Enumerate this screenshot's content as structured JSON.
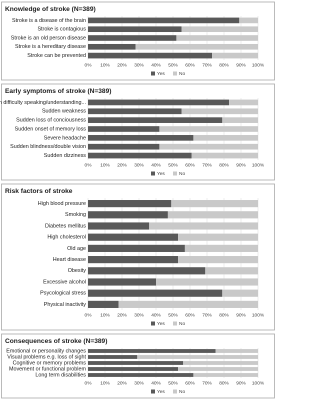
{
  "chart_data": [
    {
      "type": "bar",
      "orientation": "horizontal",
      "stacked": true,
      "title": "Knowledge of stroke (N=389)",
      "categories": [
        "Stroke is a disease of the brain",
        "Stroke is contagious",
        "Stroke is an old person disease",
        "Stroke is a hereditary disease",
        "Stroke can be prevented"
      ],
      "series": [
        {
          "name": "Yes",
          "color": "#595959",
          "values": [
            89,
            55,
            52,
            28,
            73
          ]
        },
        {
          "name": "No",
          "color": "#c9c9c9",
          "values": [
            11,
            45,
            48,
            72,
            27
          ]
        }
      ],
      "xlim": [
        0,
        100
      ],
      "xticks": [
        {
          "value": 0,
          "label": "0%"
        },
        {
          "value": 10,
          "label": "10%"
        },
        {
          "value": 20,
          "label": "20%"
        },
        {
          "value": 30,
          "label": "30%"
        },
        {
          "value": 40,
          "label": "40%"
        },
        {
          "value": 50,
          "label": "50%"
        },
        {
          "value": 60,
          "label": "60%"
        },
        {
          "value": 70,
          "label": "70%"
        },
        {
          "value": 80,
          "label": "80%"
        },
        {
          "value": 90,
          "label": "90%"
        },
        {
          "value": 100,
          "label": "100%"
        }
      ],
      "grid": true
    },
    {
      "type": "bar",
      "orientation": "horizontal",
      "stacked": true,
      "title": "Early symptoms of stroke (N=389)",
      "categories": [
        "Sudden difficulty speaking/understanding...",
        "Sudden weakness",
        "Sudden loss of conciousness",
        "Sudden onset of memory loss",
        "Severe headache",
        "Sudden blindness/double vision",
        "Sudden dizziness"
      ],
      "series": [
        {
          "name": "Yes",
          "color": "#595959",
          "values": [
            83,
            55,
            79,
            42,
            62,
            42,
            61
          ]
        },
        {
          "name": "No",
          "color": "#c9c9c9",
          "values": [
            17,
            45,
            21,
            58,
            38,
            58,
            39
          ]
        }
      ],
      "xlim": [
        0,
        100
      ],
      "xticks": [
        {
          "value": 0,
          "label": "0%"
        },
        {
          "value": 10,
          "label": "10%"
        },
        {
          "value": 20,
          "label": "20%"
        },
        {
          "value": 30,
          "label": "30%"
        },
        {
          "value": 40,
          "label": "40%"
        },
        {
          "value": 50,
          "label": "50%"
        },
        {
          "value": 60,
          "label": "60%"
        },
        {
          "value": 70,
          "label": "70%"
        },
        {
          "value": 80,
          "label": "80%"
        },
        {
          "value": 90,
          "label": "90%"
        },
        {
          "value": 100,
          "label": "100%"
        }
      ],
      "grid": true
    },
    {
      "type": "bar",
      "orientation": "horizontal",
      "stacked": true,
      "title": "Risk factors of stroke",
      "categories": [
        "High blood pressure",
        "Smoking",
        "Diabetes mellitus",
        "High cholesterol",
        "Old age",
        "Heart disease",
        "Obesity",
        "Excessive alcohol",
        "Psycological stress",
        "Physical inactivity"
      ],
      "series": [
        {
          "name": "Yes",
          "color": "#595959",
          "values": [
            49,
            47,
            36,
            53,
            57,
            53,
            69,
            40,
            79,
            18
          ]
        },
        {
          "name": "No",
          "color": "#c9c9c9",
          "values": [
            51,
            53,
            64,
            47,
            43,
            47,
            31,
            60,
            21,
            82
          ]
        }
      ],
      "xlim": [
        0,
        100
      ],
      "xticks": [
        {
          "value": 0,
          "label": "0%"
        },
        {
          "value": 10,
          "label": "10%"
        },
        {
          "value": 20,
          "label": "20%"
        },
        {
          "value": 30,
          "label": "30%"
        },
        {
          "value": 40,
          "label": "40%"
        },
        {
          "value": 50,
          "label": "50%"
        },
        {
          "value": 60,
          "label": "60%"
        },
        {
          "value": 70,
          "label": "70%"
        },
        {
          "value": 80,
          "label": "80%"
        },
        {
          "value": 90,
          "label": "90%"
        },
        {
          "value": 100,
          "label": "100%"
        }
      ],
      "grid": true
    },
    {
      "type": "bar",
      "orientation": "horizontal",
      "stacked": true,
      "title": "Consequences of stroke (N=389)",
      "categories": [
        "Emotional or personality changes",
        "Visual problems e.g. loss of sight",
        "Cognitive or memory problems",
        "Movement or functional problem",
        "Long term disabilities"
      ],
      "series": [
        {
          "name": "Yes",
          "color": "#595959",
          "values": [
            75,
            29,
            56,
            53,
            62
          ]
        },
        {
          "name": "No",
          "color": "#c9c9c9",
          "values": [
            25,
            71,
            44,
            47,
            38
          ]
        }
      ],
      "xlim": [
        0,
        100
      ],
      "xticks": [
        {
          "value": 0,
          "label": "0%"
        },
        {
          "value": 10,
          "label": "10%"
        },
        {
          "value": 20,
          "label": "20%"
        },
        {
          "value": 30,
          "label": "30%"
        },
        {
          "value": 40,
          "label": "40%"
        },
        {
          "value": 50,
          "label": "50%"
        },
        {
          "value": 60,
          "label": "60%"
        },
        {
          "value": 70,
          "label": "70%"
        },
        {
          "value": 80,
          "label": "80%"
        },
        {
          "value": 90,
          "label": "90%"
        },
        {
          "value": 100,
          "label": "100%"
        }
      ],
      "grid": true
    }
  ]
}
